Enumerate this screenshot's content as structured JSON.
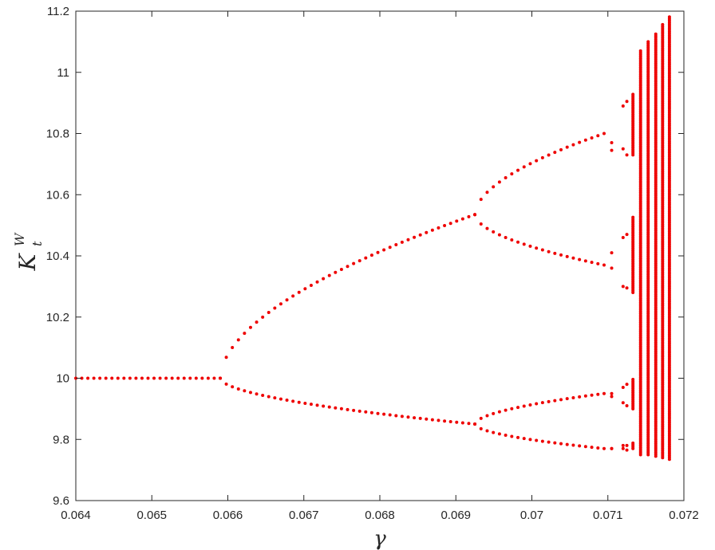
{
  "chart_data": {
    "type": "scatter",
    "title": "",
    "xlabel": "γ",
    "ylabel": {
      "base": "K",
      "sub": "t",
      "sup": "W"
    },
    "xlim": [
      0.064,
      0.072
    ],
    "ylim": [
      9.6,
      11.2
    ],
    "x_ticks": [
      0.064,
      0.065,
      0.066,
      0.067,
      0.068,
      0.069,
      0.07,
      0.071,
      0.072
    ],
    "x_tick_labels": [
      "0.064",
      "0.065",
      "0.066",
      "0.067",
      "0.068",
      "0.069",
      "0.07",
      "0.071",
      "0.072"
    ],
    "y_ticks": [
      9.6,
      9.8,
      10,
      10.2,
      10.4,
      10.6,
      10.8,
      11,
      11.2
    ],
    "y_tick_labels": [
      "9.6",
      "9.8",
      "10",
      "10.2",
      "10.4",
      "10.6",
      "10.8",
      "11",
      "11.2"
    ],
    "grid": false,
    "marker_color": "#ee0000",
    "series": [
      {
        "branches": [
          {
            "x": [
              0.064,
              0.0659
            ],
            "y": [
              10.0,
              10.0
            ]
          },
          {
            "x": [
              0.0659,
              0.06925
            ],
            "y": [
              10.0,
              10.535
            ]
          },
          {
            "x": [
              0.0659,
              0.06925
            ],
            "y": [
              10.0,
              9.85
            ]
          },
          {
            "x": [
              0.06925,
              0.07095
            ],
            "y": [
              10.535,
              10.8
            ]
          },
          {
            "x": [
              0.06925,
              0.07095
            ],
            "y": [
              10.535,
              10.37
            ]
          },
          {
            "x": [
              0.06925,
              0.07095
            ],
            "y": [
              9.85,
              9.95
            ]
          },
          {
            "x": [
              0.06925,
              0.07095
            ],
            "y": [
              9.85,
              9.77
            ]
          }
        ],
        "columns": [
          {
            "x": 0.07105,
            "y": [
              10.77,
              10.745,
              10.41,
              10.36,
              9.95,
              9.94,
              9.77,
              9.77
            ]
          },
          {
            "x": 0.0712,
            "y": [
              10.89,
              10.75,
              10.46,
              10.3,
              9.97,
              9.92,
              9.78,
              9.77
            ]
          },
          {
            "x": 0.07125,
            "y": [
              10.905,
              10.73,
              10.47,
              10.295,
              9.98,
              9.91,
              9.78,
              9.765
            ]
          },
          {
            "x": 0.07133,
            "ranges": [
              [
                10.73,
                10.93
              ],
              [
                10.28,
                10.53
              ],
              [
                9.9,
                10.0
              ],
              [
                9.77,
                9.79
              ]
            ]
          },
          {
            "x": 0.07143,
            "ranges": [
              [
                9.75,
                11.07
              ]
            ]
          },
          {
            "x": 0.07153,
            "ranges": [
              [
                9.75,
                11.1
              ]
            ]
          },
          {
            "x": 0.07163,
            "ranges": [
              [
                9.745,
                11.13
              ]
            ]
          },
          {
            "x": 0.07172,
            "ranges": [
              [
                9.74,
                11.16
              ]
            ]
          },
          {
            "x": 0.07181,
            "ranges": [
              [
                9.735,
                11.185
              ]
            ]
          }
        ]
      }
    ]
  }
}
